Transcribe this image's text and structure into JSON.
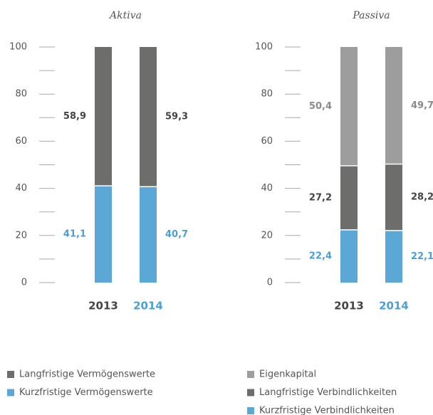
{
  "chart_data": [
    {
      "type": "stacked_bar",
      "title": "Aktiva",
      "categories": [
        "2013",
        "2014"
      ],
      "category_colors": [
        "#444444",
        "#4a9fd4"
      ],
      "series": [
        {
          "name": "Langfristige Vermögenswerte",
          "color": "#6d6d6b",
          "label_color": "#444444",
          "values": [
            58.9,
            59.3
          ],
          "value_labels": [
            "58,9",
            "59,3"
          ]
        },
        {
          "name": "Kurzfristige Vermögenswerte",
          "color": "#5ba8d6",
          "label_color": "#4a9fd4",
          "values": [
            41.1,
            40.7
          ],
          "value_labels": [
            "41,1",
            "40,7"
          ]
        }
      ],
      "ylim": [
        0,
        100
      ],
      "yticks": [
        0,
        20,
        40,
        60,
        80,
        100
      ],
      "minor_yticks": [
        10,
        30,
        50,
        70,
        90
      ]
    },
    {
      "type": "stacked_bar",
      "title": "Passiva",
      "categories": [
        "2013",
        "2014"
      ],
      "category_colors": [
        "#444444",
        "#4a9fd4"
      ],
      "series": [
        {
          "name": "Eigenkapital",
          "color": "#9d9d9d",
          "label_color": "#8a8a8a",
          "values": [
            50.4,
            49.7
          ],
          "value_labels": [
            "50,4",
            "49,7"
          ]
        },
        {
          "name": "Langfristige Verbindlichkeiten",
          "color": "#6d6d6b",
          "label_color": "#444444",
          "values": [
            27.2,
            28.2
          ],
          "value_labels": [
            "27,2",
            "28,2"
          ]
        },
        {
          "name": "Kurzfristige Verbindlichkeiten",
          "color": "#5ba8d6",
          "label_color": "#4a9fd4",
          "values": [
            22.4,
            22.1
          ],
          "value_labels": [
            "22,4",
            "22,1"
          ]
        }
      ],
      "ylim": [
        0,
        100
      ],
      "yticks": [
        0,
        20,
        40,
        60,
        80,
        100
      ],
      "minor_yticks": [
        10,
        30,
        50,
        70,
        90
      ]
    }
  ]
}
